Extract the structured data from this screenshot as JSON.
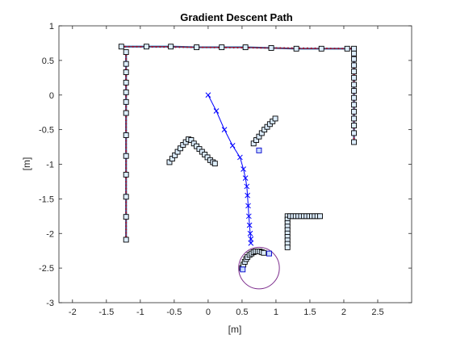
{
  "chart_data": {
    "type": "scatter",
    "title": "Gradient Descent Path",
    "xlabel": "[m]",
    "ylabel": "[m]",
    "xlim": [
      -2.2,
      3.0
    ],
    "ylim": [
      -3,
      1
    ],
    "x_ticks": [
      "-2",
      "-1.5",
      "-1",
      "-0.5",
      "0",
      "0.5",
      "1",
      "1.5",
      "2",
      "2.5"
    ],
    "y_ticks": [
      "1",
      "0.5",
      "0",
      "-0.5",
      "-1",
      "-1.5",
      "-2",
      "-2.5",
      "-3"
    ],
    "x_tick_values": [
      -2,
      -1.5,
      -1,
      -0.5,
      0,
      0.5,
      1,
      1.5,
      2,
      2.5
    ],
    "y_tick_values": [
      1,
      0.5,
      0,
      -0.5,
      -1,
      -1.5,
      -2,
      -2.5,
      -3
    ],
    "grid": false,
    "legend": "none",
    "colors": {
      "wall_line_outer": "#0072BD",
      "wall_line_inner": "#A2142F",
      "wall_dots": "#A2142F",
      "path": "#0000FF",
      "circle": "#7E2F8E",
      "marker_edge": "#000000",
      "marker_fill": "#DDEEFF",
      "blue_marker_edge": "#0000CC"
    },
    "top_wall": {
      "x": [
        -1.28,
        -0.91,
        -0.55,
        -0.17,
        0.2,
        0.55,
        0.93,
        1.3,
        1.67,
        2.05,
        2.15
      ],
      "y": [
        0.7,
        0.7,
        0.7,
        0.69,
        0.69,
        0.69,
        0.68,
        0.67,
        0.67,
        0.67,
        0.67
      ]
    },
    "left_wall": {
      "x": [
        -1.21,
        -1.21,
        -1.21,
        -1.21,
        -1.21,
        -1.21,
        -1.21,
        -1.21,
        -1.21,
        -1.21,
        -1.21,
        -1.21,
        -1.21
      ],
      "y": [
        0.62,
        0.33,
        0.04,
        -0.26,
        -0.58,
        -0.88,
        -1.15,
        -1.47,
        -1.76,
        -2.09,
        0.45,
        0.18,
        -0.1
      ]
    },
    "right_wall": {
      "x": [
        2.15,
        2.15,
        2.15,
        2.15,
        2.15,
        2.15,
        2.15,
        2.15,
        2.15,
        2.15,
        2.15,
        2.15,
        2.15,
        2.15
      ],
      "y": [
        0.6,
        0.52,
        0.43,
        0.34,
        0.25,
        0.15,
        0.06,
        -0.04,
        -0.14,
        -0.24,
        -0.34,
        -0.44,
        -0.55,
        -0.68
      ]
    },
    "chevron_obstacle": {
      "x": [
        -0.57,
        -0.53,
        -0.49,
        -0.45,
        -0.41,
        -0.37,
        -0.33,
        -0.29,
        -0.25,
        -0.21,
        -0.17,
        -0.13,
        -0.09,
        -0.05,
        -0.01,
        0.03,
        0.07,
        0.1
      ],
      "y": [
        -0.97,
        -0.92,
        -0.87,
        -0.82,
        -0.77,
        -0.72,
        -0.68,
        -0.64,
        -0.65,
        -0.7,
        -0.74,
        -0.78,
        -0.82,
        -0.86,
        -0.9,
        -0.94,
        -0.97,
        -0.99
      ]
    },
    "diagonal_obstacle": {
      "x": [
        0.67,
        0.71,
        0.75,
        0.79,
        0.83,
        0.87,
        0.91,
        0.95,
        0.99
      ],
      "y": [
        -0.7,
        -0.65,
        -0.6,
        -0.55,
        -0.5,
        -0.46,
        -0.42,
        -0.38,
        -0.34
      ]
    },
    "l_obstacle": {
      "x": [
        1.17,
        1.17,
        1.17,
        1.17,
        1.17,
        1.17,
        1.17,
        1.17,
        1.17,
        1.17,
        1.21,
        1.25,
        1.29,
        1.33,
        1.37,
        1.41,
        1.45,
        1.49,
        1.53,
        1.57,
        1.61,
        1.65
      ],
      "y": [
        -1.75,
        -1.8,
        -1.85,
        -1.9,
        -1.95,
        -2.0,
        -2.05,
        -2.1,
        -2.15,
        -2.2,
        -1.75,
        -1.75,
        -1.75,
        -1.75,
        -1.75,
        -1.75,
        -1.75,
        -1.75,
        -1.75,
        -1.75,
        -1.75,
        -1.75
      ]
    },
    "arc_obstacle": {
      "x": [
        0.5,
        0.52,
        0.54,
        0.56,
        0.58,
        0.61,
        0.64,
        0.67,
        0.7,
        0.73,
        0.76,
        0.79,
        0.82
      ],
      "y": [
        -2.5,
        -2.45,
        -2.41,
        -2.37,
        -2.34,
        -2.31,
        -2.29,
        -2.27,
        -2.26,
        -2.26,
        -2.26,
        -2.27,
        -2.28
      ]
    },
    "blue_markers": {
      "x": [
        0.75,
        0.51,
        0.9
      ],
      "y": [
        -0.8,
        -2.52,
        -2.29
      ]
    },
    "descent_path": {
      "x": [
        0.0,
        0.12,
        0.24,
        0.36,
        0.47,
        0.52,
        0.55,
        0.57,
        0.58,
        0.59,
        0.6,
        0.61,
        0.62,
        0.63,
        0.63
      ],
      "y": [
        0.0,
        -0.23,
        -0.5,
        -0.73,
        -0.9,
        -1.07,
        -1.2,
        -1.32,
        -1.45,
        -1.6,
        -1.75,
        -1.88,
        -2.0,
        -2.08,
        -2.14
      ]
    },
    "goal_circle": {
      "cx": 0.75,
      "cy": -2.5,
      "r": 0.3
    }
  }
}
